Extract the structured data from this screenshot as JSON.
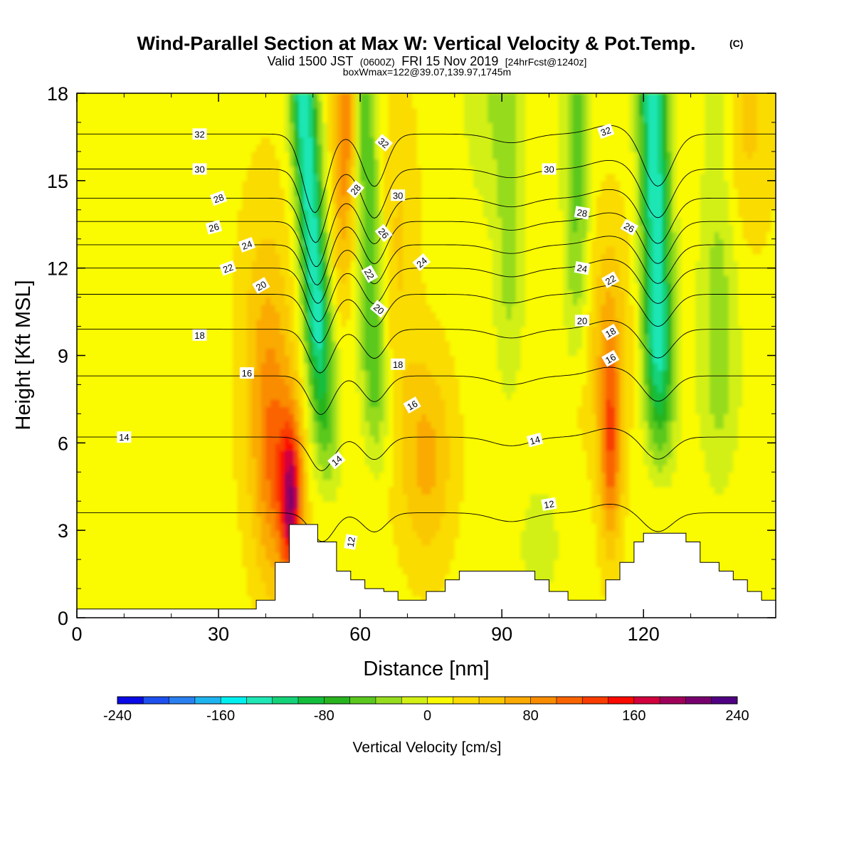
{
  "title": {
    "main": "Wind-Parallel Section at Max W: Vertical Velocity & Pot.Temp.",
    "copyright": "(C)",
    "valid_prefix": "Valid 1500 JST",
    "valid_z": "(0600Z)",
    "valid_date": "FRI 15 Nov 2019",
    "forecast": "[24hrFcst@1240z]",
    "box_info": "boxWmax=122@39.07,139.97,1745m"
  },
  "chart_data": {
    "type": "heatmap",
    "xlabel": "Distance [nm]",
    "ylabel": "Height [Kft MSL]",
    "xlim": [
      0,
      148
    ],
    "ylim": [
      0,
      18
    ],
    "xticks": [
      0,
      30,
      60,
      90,
      120
    ],
    "yticks": [
      0,
      3,
      6,
      9,
      12,
      15,
      18
    ],
    "colorbar": {
      "title": "Vertical Velocity [cm/s]",
      "min": -240,
      "max": 240,
      "step": 20,
      "labels": [
        "-240",
        "-160",
        "-80",
        "0",
        "80",
        "160",
        "240"
      ],
      "colors": [
        "#0a0ae6",
        "#1e50f0",
        "#2a80f0",
        "#1eb4f0",
        "#00f0f0",
        "#1ee6b4",
        "#14d278",
        "#14be3c",
        "#28b41e",
        "#5ac81e",
        "#96dc1e",
        "#d2f014",
        "#fafa00",
        "#fadc00",
        "#fac800",
        "#faaa00",
        "#fa8c00",
        "#fa6400",
        "#fa3c00",
        "#fa0a00",
        "#d2003c",
        "#a0005a",
        "#78006e",
        "#500082"
      ]
    },
    "velocity_features": [
      {
        "name": "updraft",
        "x": 46,
        "y": 3.5,
        "w": 160
      },
      {
        "name": "updraft",
        "x": 40,
        "y": 4,
        "w": 80
      },
      {
        "name": "downdraft",
        "x": 50,
        "y": 16,
        "w": -150
      },
      {
        "name": "downdraft",
        "x": 52,
        "y": 7,
        "w": -80
      },
      {
        "name": "updraft",
        "x": 57,
        "y": 17,
        "w": 90
      },
      {
        "name": "downdraft",
        "x": 64,
        "y": 12,
        "w": -80
      },
      {
        "name": "updraft",
        "x": 74,
        "y": 6,
        "w": 60
      },
      {
        "name": "downdraft",
        "x": 92,
        "y": 10,
        "w": -40
      },
      {
        "name": "downdraft",
        "x": 106,
        "y": 12,
        "w": -60
      },
      {
        "name": "updraft",
        "x": 113,
        "y": 6,
        "w": 100
      },
      {
        "name": "downdraft",
        "x": 124,
        "y": 13,
        "w": -160
      },
      {
        "name": "downdraft",
        "x": 136,
        "y": 7,
        "w": -40
      },
      {
        "name": "updraft",
        "x": 138,
        "y": 17,
        "w": 40
      }
    ],
    "theta_contours": {
      "levels": [
        12,
        14,
        16,
        18,
        20,
        22,
        24,
        26,
        28,
        30,
        32
      ],
      "labels": [
        {
          "text": "32",
          "x": 26,
          "y": 16.6,
          "rot": 0
        },
        {
          "text": "30",
          "x": 26,
          "y": 15.4,
          "rot": 0
        },
        {
          "text": "28",
          "x": 30,
          "y": 14.4,
          "rot": -20
        },
        {
          "text": "26",
          "x": 29,
          "y": 13.4,
          "rot": -15
        },
        {
          "text": "24",
          "x": 36,
          "y": 12.8,
          "rot": -20
        },
        {
          "text": "22",
          "x": 32,
          "y": 12,
          "rot": -20
        },
        {
          "text": "20",
          "x": 39,
          "y": 11.4,
          "rot": -30
        },
        {
          "text": "18",
          "x": 26,
          "y": 9.7,
          "rot": 0
        },
        {
          "text": "16",
          "x": 36,
          "y": 8.4,
          "rot": 0
        },
        {
          "text": "14",
          "x": 10,
          "y": 6.2,
          "rot": 0
        },
        {
          "text": "32",
          "x": 65,
          "y": 16.3,
          "rot": 40
        },
        {
          "text": "28",
          "x": 59,
          "y": 14.7,
          "rot": -50
        },
        {
          "text": "30",
          "x": 68,
          "y": 14.5,
          "rot": 0
        },
        {
          "text": "26",
          "x": 65,
          "y": 13.2,
          "rot": 50
        },
        {
          "text": "24",
          "x": 73,
          "y": 12.2,
          "rot": -40
        },
        {
          "text": "22",
          "x": 62,
          "y": 11.8,
          "rot": 60
        },
        {
          "text": "20",
          "x": 64,
          "y": 10.6,
          "rot": 40
        },
        {
          "text": "18",
          "x": 68,
          "y": 8.7,
          "rot": 0
        },
        {
          "text": "16",
          "x": 71,
          "y": 7.3,
          "rot": -30
        },
        {
          "text": "14",
          "x": 55,
          "y": 5.4,
          "rot": -40
        },
        {
          "text": "12",
          "x": 58,
          "y": 2.6,
          "rot": -80
        },
        {
          "text": "32",
          "x": 112,
          "y": 16.7,
          "rot": -20
        },
        {
          "text": "30",
          "x": 100,
          "y": 15.4,
          "rot": 0
        },
        {
          "text": "28",
          "x": 107,
          "y": 13.9,
          "rot": 10
        },
        {
          "text": "26",
          "x": 117,
          "y": 13.4,
          "rot": 30
        },
        {
          "text": "24",
          "x": 107,
          "y": 12,
          "rot": 10
        },
        {
          "text": "22",
          "x": 113,
          "y": 11.6,
          "rot": -30
        },
        {
          "text": "20",
          "x": 107,
          "y": 10.2,
          "rot": 0
        },
        {
          "text": "18",
          "x": 113,
          "y": 9.8,
          "rot": -30
        },
        {
          "text": "16",
          "x": 113,
          "y": 8.9,
          "rot": -30
        },
        {
          "text": "14",
          "x": 97,
          "y": 6.1,
          "rot": -15
        },
        {
          "text": "12",
          "x": 100,
          "y": 3.9,
          "rot": -10
        }
      ]
    },
    "terrain": [
      [
        0,
        0.3
      ],
      [
        38,
        0.3
      ],
      [
        38,
        0.6
      ],
      [
        42,
        0.6
      ],
      [
        42,
        1.9
      ],
      [
        45,
        1.9
      ],
      [
        45,
        3.2
      ],
      [
        51,
        3.2
      ],
      [
        51,
        2.6
      ],
      [
        55,
        2.6
      ],
      [
        55,
        1.6
      ],
      [
        58,
        1.6
      ],
      [
        58,
        1.3
      ],
      [
        61,
        1.3
      ],
      [
        61,
        1.0
      ],
      [
        65,
        1.0
      ],
      [
        65,
        0.9
      ],
      [
        68,
        0.9
      ],
      [
        68,
        0.6
      ],
      [
        74,
        0.6
      ],
      [
        74,
        0.9
      ],
      [
        78,
        0.9
      ],
      [
        78,
        1.3
      ],
      [
        81,
        1.3
      ],
      [
        81,
        1.6
      ],
      [
        90,
        1.6
      ],
      [
        90,
        1.6
      ],
      [
        97,
        1.6
      ],
      [
        97,
        1.3
      ],
      [
        100,
        1.3
      ],
      [
        100,
        0.9
      ],
      [
        104,
        0.9
      ],
      [
        104,
        0.6
      ],
      [
        107,
        0.6
      ],
      [
        107,
        0.6
      ],
      [
        112,
        0.6
      ],
      [
        112,
        1.3
      ],
      [
        115,
        1.3
      ],
      [
        115,
        1.9
      ],
      [
        118,
        1.9
      ],
      [
        118,
        2.6
      ],
      [
        120,
        2.6
      ],
      [
        120,
        2.9
      ],
      [
        126,
        2.9
      ],
      [
        126,
        2.9
      ],
      [
        129,
        2.9
      ],
      [
        129,
        2.6
      ],
      [
        132,
        2.6
      ],
      [
        132,
        1.9
      ],
      [
        136,
        1.9
      ],
      [
        136,
        1.6
      ],
      [
        139,
        1.6
      ],
      [
        139,
        1.3
      ],
      [
        142,
        1.3
      ],
      [
        142,
        0.9
      ],
      [
        145,
        0.9
      ],
      [
        145,
        0.6
      ],
      [
        148,
        0.6
      ]
    ]
  }
}
